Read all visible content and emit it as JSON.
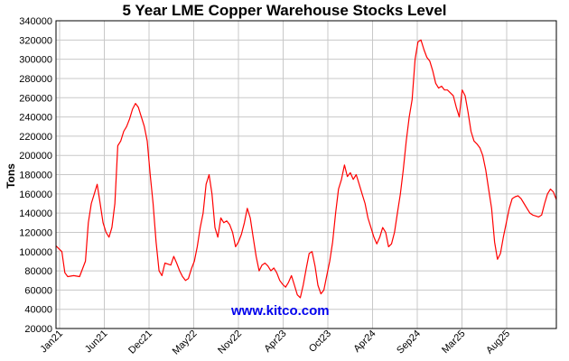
{
  "chart_data": {
    "type": "line",
    "title": "5 Year LME Copper Warehouse Stocks Level",
    "xlabel": "",
    "ylabel": "Tons",
    "ylim": [
      20000,
      340000
    ],
    "y_ticks": [
      20000,
      40000,
      60000,
      80000,
      100000,
      120000,
      140000,
      160000,
      180000,
      200000,
      220000,
      240000,
      260000,
      280000,
      300000,
      320000,
      340000
    ],
    "x_tick_labels": [
      "Jan21",
      "Jun21",
      "Dec21",
      "May22",
      "Nov22",
      "Apr23",
      "Oct23",
      "Apr24",
      "Sep24",
      "Mar25",
      "Aug25"
    ],
    "grid": true,
    "line_color": "#ff0000",
    "series": [
      {
        "values": [
          [
            0,
            106000
          ],
          [
            2,
            100000
          ],
          [
            3,
            78000
          ],
          [
            4,
            74000
          ],
          [
            6,
            75000
          ],
          [
            8,
            74000
          ],
          [
            10,
            90000
          ],
          [
            11,
            130000
          ],
          [
            12,
            150000
          ],
          [
            13,
            160000
          ],
          [
            14,
            170000
          ],
          [
            15,
            150000
          ],
          [
            16,
            130000
          ],
          [
            17,
            120000
          ],
          [
            18,
            115000
          ],
          [
            19,
            125000
          ],
          [
            20,
            150000
          ],
          [
            21,
            210000
          ],
          [
            22,
            215000
          ],
          [
            23,
            225000
          ],
          [
            24,
            230000
          ],
          [
            25,
            238000
          ],
          [
            26,
            248000
          ],
          [
            27,
            254000
          ],
          [
            28,
            250000
          ],
          [
            29,
            240000
          ],
          [
            30,
            230000
          ],
          [
            31,
            215000
          ],
          [
            32,
            180000
          ],
          [
            33,
            150000
          ],
          [
            34,
            110000
          ],
          [
            35,
            80000
          ],
          [
            36,
            75000
          ],
          [
            37,
            88000
          ],
          [
            38,
            87000
          ],
          [
            39,
            86000
          ],
          [
            40,
            95000
          ],
          [
            41,
            88000
          ],
          [
            42,
            80000
          ],
          [
            43,
            74000
          ],
          [
            44,
            70000
          ],
          [
            45,
            72000
          ],
          [
            46,
            82000
          ],
          [
            47,
            90000
          ],
          [
            48,
            105000
          ],
          [
            49,
            125000
          ],
          [
            50,
            140000
          ],
          [
            51,
            170000
          ],
          [
            52,
            180000
          ],
          [
            53,
            160000
          ],
          [
            54,
            125000
          ],
          [
            55,
            115000
          ],
          [
            56,
            135000
          ],
          [
            57,
            130000
          ],
          [
            58,
            132000
          ],
          [
            59,
            128000
          ],
          [
            60,
            120000
          ],
          [
            61,
            105000
          ],
          [
            62,
            110000
          ],
          [
            63,
            118000
          ],
          [
            64,
            130000
          ],
          [
            65,
            145000
          ],
          [
            66,
            135000
          ],
          [
            67,
            115000
          ],
          [
            68,
            95000
          ],
          [
            69,
            80000
          ],
          [
            70,
            86000
          ],
          [
            71,
            88000
          ],
          [
            72,
            85000
          ],
          [
            73,
            80000
          ],
          [
            74,
            83000
          ],
          [
            75,
            78000
          ],
          [
            76,
            70000
          ],
          [
            77,
            66000
          ],
          [
            78,
            63000
          ],
          [
            79,
            68000
          ],
          [
            80,
            75000
          ],
          [
            81,
            65000
          ],
          [
            82,
            55000
          ],
          [
            83,
            52000
          ],
          [
            84,
            65000
          ],
          [
            85,
            82000
          ],
          [
            86,
            98000
          ],
          [
            87,
            100000
          ],
          [
            88,
            85000
          ],
          [
            89,
            65000
          ],
          [
            90,
            56000
          ],
          [
            91,
            60000
          ],
          [
            92,
            75000
          ],
          [
            93,
            90000
          ],
          [
            94,
            110000
          ],
          [
            95,
            140000
          ],
          [
            96,
            165000
          ],
          [
            97,
            175000
          ],
          [
            98,
            190000
          ],
          [
            99,
            178000
          ],
          [
            100,
            182000
          ],
          [
            101,
            175000
          ],
          [
            102,
            180000
          ],
          [
            103,
            170000
          ],
          [
            104,
            160000
          ],
          [
            105,
            150000
          ],
          [
            106,
            135000
          ],
          [
            107,
            125000
          ],
          [
            108,
            115000
          ],
          [
            109,
            108000
          ],
          [
            110,
            115000
          ],
          [
            111,
            125000
          ],
          [
            112,
            120000
          ],
          [
            113,
            105000
          ],
          [
            114,
            108000
          ],
          [
            115,
            120000
          ],
          [
            116,
            140000
          ],
          [
            117,
            160000
          ],
          [
            118,
            185000
          ],
          [
            119,
            215000
          ],
          [
            120,
            240000
          ],
          [
            121,
            258000
          ],
          [
            122,
            300000
          ],
          [
            123,
            318000
          ],
          [
            124,
            320000
          ],
          [
            125,
            310000
          ],
          [
            126,
            302000
          ],
          [
            127,
            298000
          ],
          [
            128,
            288000
          ],
          [
            129,
            275000
          ],
          [
            130,
            270000
          ],
          [
            131,
            272000
          ],
          [
            132,
            268000
          ],
          [
            133,
            268000
          ],
          [
            134,
            265000
          ],
          [
            135,
            262000
          ],
          [
            136,
            250000
          ],
          [
            137,
            240000
          ],
          [
            138,
            268000
          ],
          [
            139,
            262000
          ],
          [
            140,
            245000
          ],
          [
            141,
            225000
          ],
          [
            142,
            215000
          ],
          [
            143,
            212000
          ],
          [
            144,
            208000
          ],
          [
            145,
            200000
          ],
          [
            146,
            185000
          ],
          [
            147,
            165000
          ],
          [
            148,
            145000
          ],
          [
            149,
            110000
          ],
          [
            150,
            92000
          ],
          [
            151,
            98000
          ],
          [
            152,
            115000
          ],
          [
            153,
            130000
          ],
          [
            154,
            145000
          ],
          [
            155,
            155000
          ],
          [
            156,
            157000
          ],
          [
            157,
            158000
          ],
          [
            158,
            155000
          ],
          [
            159,
            150000
          ],
          [
            160,
            145000
          ],
          [
            161,
            140000
          ],
          [
            162,
            138000
          ],
          [
            163,
            137000
          ],
          [
            164,
            136000
          ],
          [
            165,
            138000
          ],
          [
            166,
            150000
          ],
          [
            167,
            160000
          ],
          [
            168,
            165000
          ],
          [
            169,
            162000
          ],
          [
            170,
            154000
          ]
        ]
      }
    ]
  },
  "watermark": "www.kitco.com"
}
